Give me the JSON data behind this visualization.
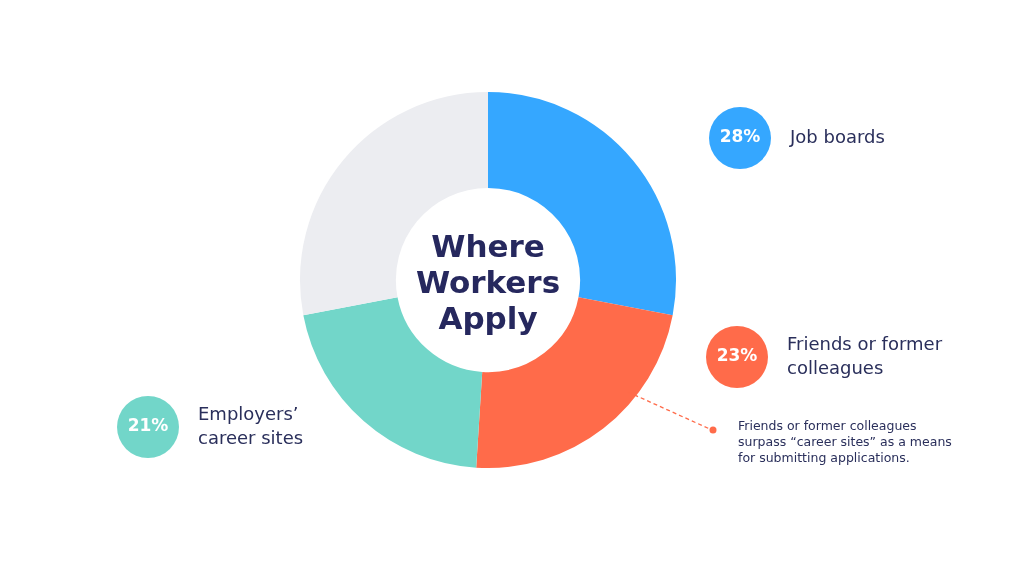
{
  "chart_data": {
    "type": "donut",
    "title": "Where Workers Apply",
    "categories": [
      "Job boards",
      "Friends or former colleagues",
      "Employers’ career sites",
      null
    ],
    "values": [
      28,
      23,
      21,
      28
    ],
    "colors": [
      "#35a7ff",
      "#ff6b4a",
      "#72d6c9",
      "#ecedf1"
    ],
    "value_labels": [
      "28%",
      "23%",
      "21%",
      null
    ],
    "legend": false,
    "annotations": [
      "Friends or former colleagues surpass “career sites” as a means for submitting applications."
    ]
  }
}
